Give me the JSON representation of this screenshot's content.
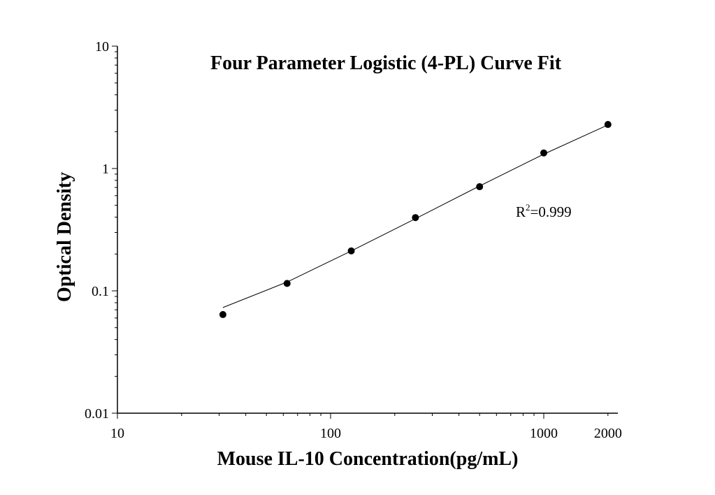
{
  "chart_data": {
    "type": "scatter",
    "title": "Four Parameter Logistic (4-PL) Curve Fit",
    "xlabel": "Mouse IL-10 Concentration(pg/mL)",
    "ylabel": "Optical Density",
    "x_scale": "log",
    "y_scale": "log",
    "xlim": [
      10,
      2500
    ],
    "ylim": [
      0.01,
      10
    ],
    "x_ticks": [
      {
        "value": 10,
        "label": "10"
      },
      {
        "value": 100,
        "label": "100"
      },
      {
        "value": 1000,
        "label": "1000"
      },
      {
        "value": 2000,
        "label": "2000"
      }
    ],
    "y_ticks": [
      {
        "value": 0.01,
        "label": "0.01"
      },
      {
        "value": 0.1,
        "label": "0.1"
      },
      {
        "value": 1,
        "label": "1"
      },
      {
        "value": 10,
        "label": "10"
      }
    ],
    "points": [
      {
        "x": 31.25,
        "y": 0.064
      },
      {
        "x": 62.5,
        "y": 0.115
      },
      {
        "x": 125,
        "y": 0.212
      },
      {
        "x": 250,
        "y": 0.397
      },
      {
        "x": 500,
        "y": 0.71
      },
      {
        "x": 1000,
        "y": 1.34
      },
      {
        "x": 2000,
        "y": 2.29
      }
    ],
    "fit_curve": [
      {
        "x": 31.25,
        "y": 0.073
      },
      {
        "x": 62.5,
        "y": 0.118
      },
      {
        "x": 125,
        "y": 0.212
      },
      {
        "x": 250,
        "y": 0.389
      },
      {
        "x": 500,
        "y": 0.72
      },
      {
        "x": 1000,
        "y": 1.31
      },
      {
        "x": 2000,
        "y": 2.27
      }
    ],
    "annotation": {
      "r2_prefix": "R",
      "r2_superscript": "2",
      "r2_value": "=0.999"
    },
    "grid": false,
    "legend": "none"
  }
}
